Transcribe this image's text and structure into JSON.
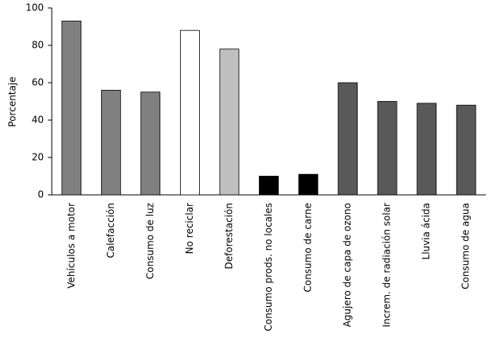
{
  "chart_data": {
    "type": "bar",
    "y_label": "Porcentaje",
    "categories": [
      "Vehículos a motor",
      "Calefacción",
      "Consumo de luz",
      "No reciclar",
      "Deforestación",
      "Consumo prods. no locales",
      "Consumo de carne",
      "Agujero de capa de ozono",
      "Increm. de radiación solar",
      "Lluvia ácida",
      "Consumo de agua"
    ],
    "values": [
      93,
      56,
      55,
      88,
      78,
      10,
      11,
      60,
      50,
      49,
      48
    ],
    "colors": [
      "#808080",
      "#808080",
      "#808080",
      "#ffffff",
      "#bfbfbf",
      "#000000",
      "#000000",
      "#595959",
      "#595959",
      "#595959",
      "#595959"
    ],
    "ylim": [
      0,
      100
    ],
    "yticks": [
      0,
      20,
      40,
      60,
      80,
      100
    ],
    "grid": false
  }
}
